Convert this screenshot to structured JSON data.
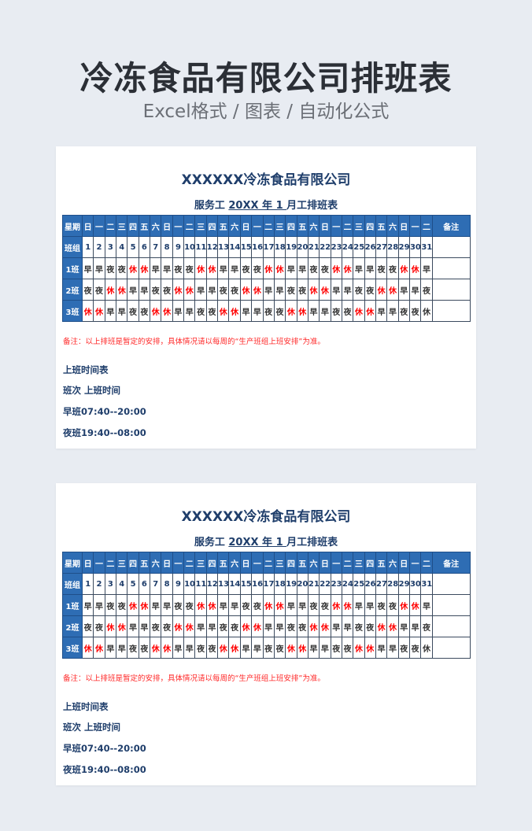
{
  "header": {
    "title": "冷冻食品有限公司排班表",
    "subtitle": "Excel格式 / 图表 / 自动化公式"
  },
  "sheet": {
    "company": "XXXXXX冷冻食品有限公司",
    "title_prefix": "服务工",
    "title_year": "20XX 年 1 ",
    "title_suffix": "月工排班表",
    "weekday_label": "星期",
    "group_label": "班组",
    "remark_label": "备注",
    "weekdays": [
      "日",
      "一",
      "二",
      "三",
      "四",
      "五",
      "六",
      "日",
      "一",
      "二",
      "三",
      "四",
      "五",
      "六",
      "日",
      "一",
      "二",
      "三",
      "四",
      "五",
      "六",
      "日",
      "一",
      "二",
      "三",
      "四",
      "五",
      "六",
      "日",
      "一",
      "二"
    ],
    "days": [
      "1",
      "2",
      "3",
      "4",
      "5",
      "6",
      "7",
      "8",
      "9",
      "10",
      "11",
      "12",
      "13",
      "14",
      "15",
      "16",
      "17",
      "18",
      "19",
      "20",
      "21",
      "22",
      "23",
      "24",
      "25",
      "26",
      "27",
      "28",
      "29",
      "30",
      "31"
    ],
    "rows": [
      {
        "name": "1班",
        "shifts": [
          "早",
          "早",
          "夜",
          "夜",
          "休",
          "休",
          "早",
          "早",
          "夜",
          "夜",
          "休",
          "休",
          "早",
          "早",
          "夜",
          "夜",
          "休",
          "休",
          "早",
          "早",
          "夜",
          "夜",
          "休",
          "休",
          "早",
          "早",
          "夜",
          "夜",
          "休",
          "休",
          "早"
        ]
      },
      {
        "name": "2班",
        "shifts": [
          "夜",
          "夜",
          "休",
          "休",
          "早",
          "早",
          "夜",
          "夜",
          "休",
          "休",
          "早",
          "早",
          "夜",
          "夜",
          "休",
          "休",
          "早",
          "早",
          "夜",
          "夜",
          "休",
          "休",
          "早",
          "早",
          "夜",
          "夜",
          "休",
          "休",
          "早",
          "早",
          "夜"
        ]
      },
      {
        "name": "3班",
        "shifts": [
          "休",
          "休",
          "早",
          "早",
          "夜",
          "夜",
          "休",
          "休",
          "早",
          "早",
          "夜",
          "夜",
          "休",
          "休",
          "早",
          "早",
          "夜",
          "夜",
          "休",
          "休",
          "早",
          "早",
          "夜",
          "夜",
          "休",
          "休",
          "早",
          "早",
          "夜",
          "夜",
          "休"
        ]
      }
    ],
    "note": "备注：以上排班是暂定的安排，具体情况请以每周的“生产班组上班安排”为准。",
    "schedule_title": "上班时间表",
    "schedule_header": "班次 上班时间",
    "day_shift": "早班07:40--20:00",
    "night_shift": "夜班19:40--08:00"
  },
  "colors": {
    "header_blue": "#2e6db4",
    "rest_red": "#ff0000",
    "text_navy": "#1f3e6b"
  }
}
